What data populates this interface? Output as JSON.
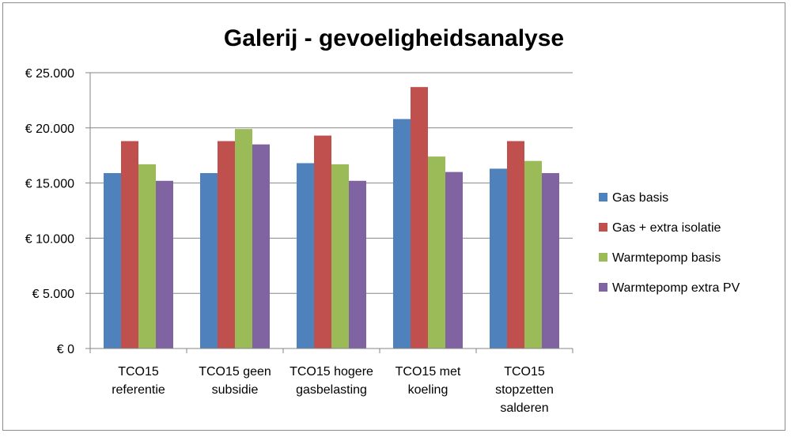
{
  "chart_data": {
    "type": "bar",
    "title": "Galerij - gevoeligheidsanalyse",
    "xlabel": "",
    "ylabel": "",
    "ylim": [
      0,
      25000
    ],
    "yticks": [
      0,
      5000,
      10000,
      15000,
      20000,
      25000
    ],
    "ytick_labels": [
      "€ 0",
      "€ 5.000",
      "€ 10.000",
      "€ 15.000",
      "€ 20.000",
      "€ 25.000"
    ],
    "grid": true,
    "legend_position": "right",
    "categories": [
      [
        "TCO15",
        "referentie"
      ],
      [
        "TCO15 geen",
        "subsidie"
      ],
      [
        "TCO15 hogere",
        "gasbelasting"
      ],
      [
        "TCO15 met",
        "koeling"
      ],
      [
        "TCO15",
        "stopzetten",
        "salderen"
      ]
    ],
    "series": [
      {
        "name": "Gas basis",
        "color": "#4f81bd",
        "values": [
          15900,
          15900,
          16800,
          20800,
          16300
        ]
      },
      {
        "name": "Gas + extra isolatie",
        "color": "#c0504d",
        "values": [
          18800,
          18800,
          19300,
          23700,
          18800
        ]
      },
      {
        "name": "Warmtepomp basis",
        "color": "#9bbb59",
        "values": [
          16700,
          19900,
          16700,
          17400,
          17000
        ]
      },
      {
        "name": "Warmtepomp extra PV",
        "color": "#8064a2",
        "values": [
          15200,
          18500,
          15200,
          16000,
          15900
        ]
      }
    ]
  }
}
